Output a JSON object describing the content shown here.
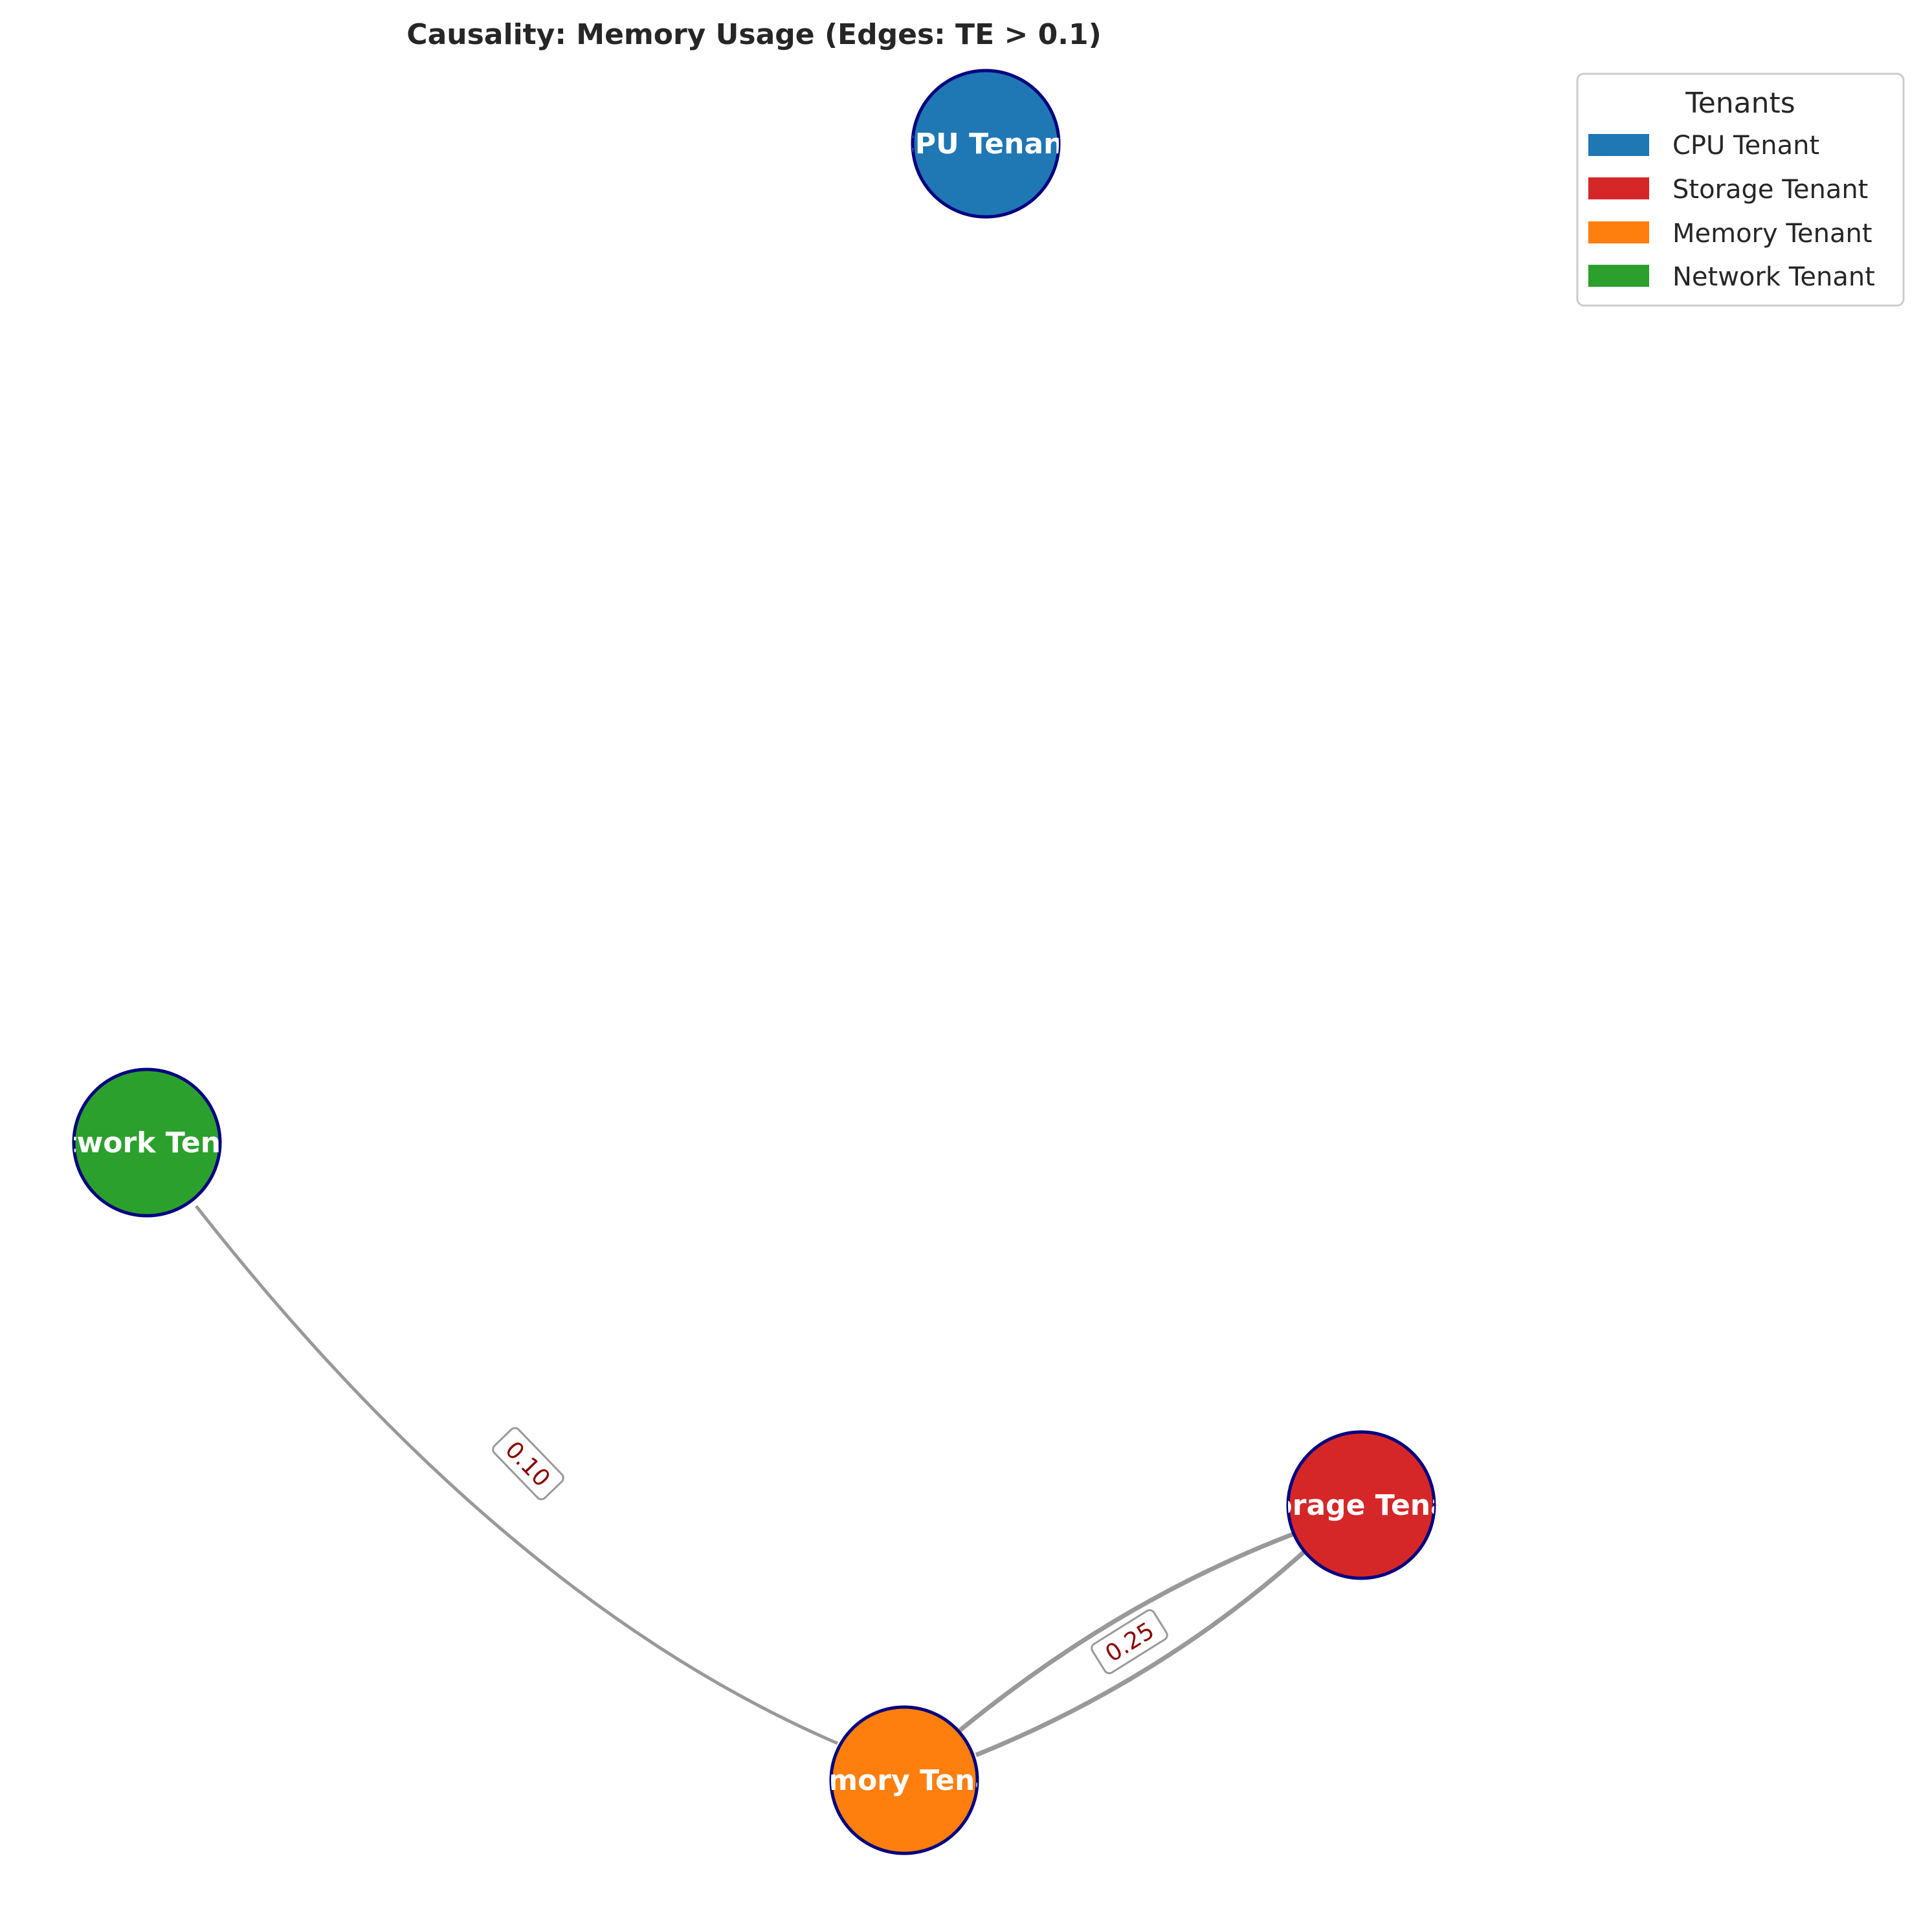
{
  "title": "Causality: Memory Usage (Edges: TE > 0.1)",
  "legend": {
    "title": "Tenants",
    "items": [
      {
        "label": "CPU Tenant",
        "color": "#1f77b4"
      },
      {
        "label": "Storage Tenant",
        "color": "#d62728"
      },
      {
        "label": "Memory Tenant",
        "color": "#ff7f0e"
      },
      {
        "label": "Network Tenant",
        "color": "#2ca02c"
      }
    ]
  },
  "nodes": [
    {
      "id": "cpu",
      "label": "CPU Tenant",
      "color": "#1f77b4"
    },
    {
      "id": "network",
      "label": "Network Tenant",
      "color": "#2ca02c"
    },
    {
      "id": "storage",
      "label": "Storage Tenant",
      "color": "#d62728"
    },
    {
      "id": "memory",
      "label": "Memory Tenant",
      "color": "#ff7f0e"
    }
  ],
  "edges": [
    {
      "source": "network",
      "target": "memory",
      "label": "0.10"
    },
    {
      "source": "storage",
      "target": "memory",
      "label": "0.25"
    },
    {
      "source": "memory",
      "target": "storage",
      "label": ""
    }
  ],
  "colors": {
    "node_border": "#000080",
    "edge": "#999999",
    "edge_label": "#8b0000"
  }
}
